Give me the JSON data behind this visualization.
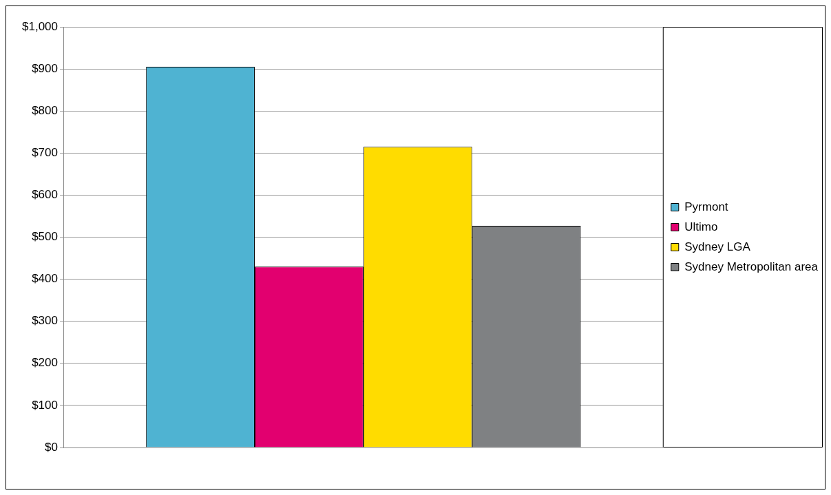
{
  "chart_data": {
    "type": "bar",
    "categories": [
      null
    ],
    "series": [
      {
        "name": "Pyrmont",
        "color": "#4fb3d2",
        "values": [
          905
        ]
      },
      {
        "name": "Ultimo",
        "color": "#e2006f",
        "values": [
          430
        ]
      },
      {
        "name": "Sydney LGA",
        "color": "#ffdc00",
        "values": [
          715
        ]
      },
      {
        "name": "Sydney Metropolitan area",
        "color": "#7f8183",
        "values": [
          527
        ]
      }
    ],
    "ylim": [
      0,
      1000
    ],
    "yticks": [
      {
        "value": 0,
        "label": "$0"
      },
      {
        "value": 100,
        "label": "$100"
      },
      {
        "value": 200,
        "label": "$200"
      },
      {
        "value": 300,
        "label": "$300"
      },
      {
        "value": 400,
        "label": "$400"
      },
      {
        "value": 500,
        "label": "$500"
      },
      {
        "value": 600,
        "label": "$600"
      },
      {
        "value": 700,
        "label": "$700"
      },
      {
        "value": 800,
        "label": "$800"
      },
      {
        "value": 900,
        "label": "$900"
      },
      {
        "value": 1000,
        "label": "$1,000"
      }
    ],
    "grid": "y",
    "legend": "right"
  }
}
